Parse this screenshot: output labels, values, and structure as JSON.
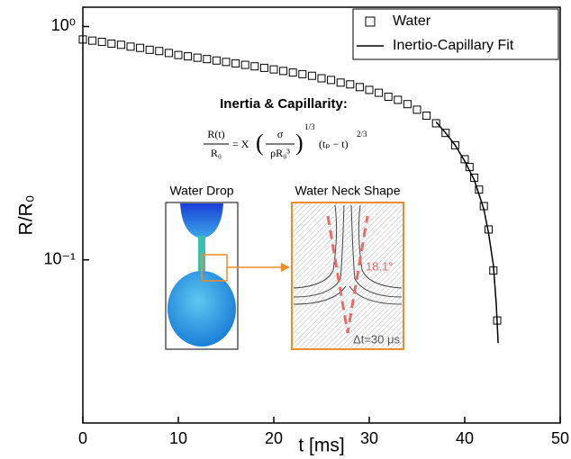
{
  "chart_data": {
    "type": "scatter",
    "x_label": "t [ms]",
    "y_label": "R/R₀",
    "xlim": [
      0,
      50
    ],
    "xticks": [
      0,
      10,
      20,
      30,
      40,
      50
    ],
    "ylim": [
      0.02,
      1.21
    ],
    "yticks": [
      {
        "value": 0.1,
        "label": "10⁻¹"
      },
      {
        "value": 1,
        "label": "10⁰"
      }
    ],
    "log_y": true,
    "legend": "top-right",
    "series": [
      {
        "name": "Water",
        "type": "scatter",
        "color": "#000000",
        "x": [
          0,
          1,
          2,
          3,
          4,
          5,
          6,
          7,
          8,
          9,
          10,
          11,
          12,
          13,
          14,
          15,
          16,
          17,
          18,
          19,
          20,
          21,
          22,
          23,
          24,
          25,
          26,
          27,
          28,
          29,
          30,
          31,
          32,
          33,
          34,
          35,
          36,
          37,
          38,
          39,
          40,
          40.5,
          41,
          41.5,
          42,
          42.5,
          43,
          43.4
        ],
        "values": [
          0.88,
          0.87,
          0.86,
          0.845,
          0.835,
          0.82,
          0.81,
          0.795,
          0.785,
          0.77,
          0.755,
          0.745,
          0.735,
          0.725,
          0.715,
          0.705,
          0.695,
          0.685,
          0.675,
          0.665,
          0.655,
          0.645,
          0.635,
          0.625,
          0.615,
          0.6,
          0.59,
          0.575,
          0.565,
          0.55,
          0.535,
          0.52,
          0.5,
          0.485,
          0.465,
          0.44,
          0.415,
          0.385,
          0.35,
          0.31,
          0.27,
          0.25,
          0.225,
          0.2,
          0.17,
          0.135,
          0.09,
          0.055
        ]
      },
      {
        "name": "Inertio-Capillary Fit",
        "type": "line",
        "color": "#000000",
        "x": [
          37,
          38,
          39,
          40,
          41,
          42,
          42.5,
          43,
          43.3,
          43.5
        ],
        "values": [
          0.39,
          0.35,
          0.31,
          0.265,
          0.22,
          0.165,
          0.13,
          0.095,
          0.065,
          0.044
        ]
      }
    ],
    "annotations": {
      "heading": "Inertia & Capillarity:",
      "formula": {
        "lhs_num": "R(t)",
        "lhs_den": "R₀",
        "eq": "= X",
        "num": "σ",
        "den": "ρR₀³",
        "exp1": "1/3",
        "term": "(tₚ − t)",
        "exp2": "2/3"
      },
      "inset_left_title": "Water Drop",
      "inset_right_title": "Water Neck Shape",
      "angle": "18.1°",
      "dt": "Δt=30 μs"
    }
  }
}
